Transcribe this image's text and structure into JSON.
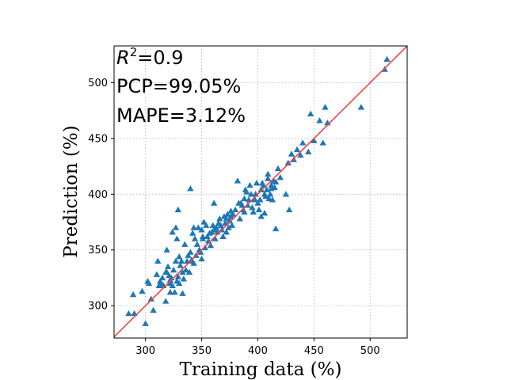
{
  "chart_data": {
    "type": "scatter",
    "xlabel": "Training data (%)",
    "ylabel": "Prediction (%)",
    "xlim": [
      272,
      533
    ],
    "ylim": [
      271,
      533
    ],
    "xticks": [
      300,
      350,
      400,
      450,
      500
    ],
    "yticks": [
      300,
      350,
      400,
      450,
      500
    ],
    "grid": true,
    "marker": "triangle",
    "colors": {
      "points": "#1f77b4",
      "fit_line": "#ee4444"
    },
    "annotations": {
      "r2_base": "R",
      "r2_sup": "2",
      "r2_value": "=0.9",
      "pcp": "PCP=99.05%",
      "mape": "MAPE=3.12%"
    },
    "fit_line": {
      "x": [
        272,
        533
      ],
      "y": [
        272,
        533
      ]
    },
    "x": [
      285,
      289,
      290,
      297,
      300,
      302,
      303,
      305,
      307,
      310,
      311,
      312,
      313,
      314,
      315,
      316,
      318,
      319,
      320,
      321,
      322,
      322,
      323,
      324,
      325,
      326,
      327,
      328,
      328,
      329,
      330,
      330,
      331,
      332,
      333,
      333,
      334,
      335,
      336,
      337,
      338,
      339,
      340,
      340,
      341,
      342,
      343,
      344,
      345,
      346,
      347,
      348,
      349,
      350,
      350,
      351,
      352,
      353,
      354,
      355,
      356,
      357,
      358,
      359,
      360,
      361,
      362,
      363,
      364,
      365,
      366,
      367,
      368,
      369,
      370,
      371,
      372,
      373,
      374,
      375,
      376,
      377,
      378,
      380,
      382,
      384,
      385,
      386,
      387,
      388,
      389,
      390,
      391,
      392,
      393,
      394,
      395,
      396,
      397,
      398,
      399,
      400,
      401,
      402,
      403,
      404,
      405,
      406,
      407,
      408,
      409,
      410,
      411,
      412,
      413,
      414,
      415,
      416,
      418,
      420,
      425,
      428,
      430,
      432,
      435,
      438,
      440,
      445,
      447,
      450,
      455,
      458,
      460,
      462,
      492,
      513,
      515,
      329,
      322,
      319,
      324,
      341,
      318,
      327,
      372,
      383,
      397,
      403,
      406,
      409,
      412,
      416,
      343,
      351,
      361,
      376,
      388,
      398,
      427
    ],
    "y": [
      293,
      310,
      293,
      313,
      284,
      322,
      320,
      306,
      296,
      328,
      340,
      318,
      322,
      320,
      325,
      318,
      304,
      330,
      335,
      327,
      312,
      320,
      325,
      318,
      332,
      312,
      340,
      322,
      360,
      326,
      344,
      320,
      336,
      340,
      311,
      330,
      324,
      355,
      332,
      340,
      345,
      330,
      348,
      405,
      340,
      365,
      338,
      360,
      345,
      355,
      370,
      350,
      348,
      368,
      342,
      360,
      375,
      352,
      372,
      362,
      358,
      365,
      354,
      366,
      372,
      368,
      360,
      370,
      366,
      374,
      378,
      372,
      368,
      362,
      380,
      374,
      378,
      382,
      370,
      376,
      380,
      372,
      382,
      386,
      412,
      378,
      392,
      390,
      386,
      396,
      404,
      402,
      390,
      395,
      408,
      400,
      388,
      384,
      396,
      400,
      410,
      392,
      386,
      395,
      404,
      410,
      408,
      400,
      398,
      404,
      414,
      396,
      400,
      408,
      395,
      412,
      406,
      369,
      423,
      415,
      400,
      386,
      436,
      431,
      440,
      435,
      446,
      438,
      472,
      448,
      466,
      446,
      478,
      464,
      478,
      512,
      521,
      386,
      323,
      350,
      366,
      341,
      330,
      370,
      366,
      392,
      395,
      380,
      383,
      418,
      405,
      411,
      370,
      362,
      392,
      385,
      384,
      400,
      428
    ]
  }
}
